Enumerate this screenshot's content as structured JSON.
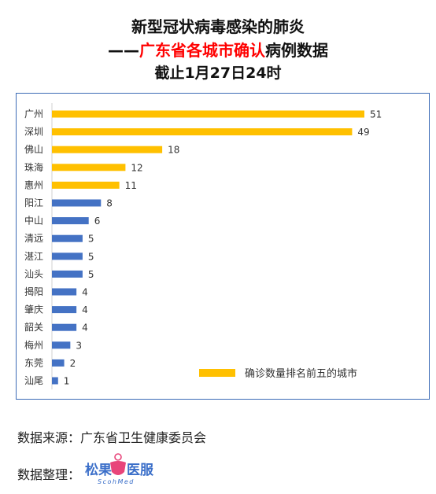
{
  "title": {
    "line1": "新型冠状病毒感染的肺炎",
    "line2_prefix": "——",
    "line2_highlight": "广东省各城市确认",
    "line2_suffix": "病例数据",
    "line3": "截止1月27日24时"
  },
  "colors": {
    "highlight_bar": "#ffc000",
    "normal_bar": "#4472c4",
    "title_red": "#ff0000",
    "frame": "#3c6bb6",
    "logo_pink": "#e8457a",
    "logo_blue": "#3b6fc9"
  },
  "chart_data": {
    "type": "bar",
    "orientation": "horizontal",
    "categories": [
      "广州",
      "深圳",
      "佛山",
      "珠海",
      "惠州",
      "阳江",
      "中山",
      "清远",
      "湛江",
      "汕头",
      "揭阳",
      "肇庆",
      "韶关",
      "梅州",
      "东莞",
      "汕尾"
    ],
    "values": [
      51,
      49,
      18,
      12,
      11,
      8,
      6,
      5,
      5,
      5,
      4,
      4,
      4,
      3,
      2,
      1
    ],
    "highlighted_top": 5,
    "legend": {
      "label": "确诊数量排名前五的城市",
      "placement": "bottom-right"
    },
    "xlim": [
      0,
      51
    ],
    "grid": false,
    "data_labels": true
  },
  "footer": {
    "source_label": "数据来源：",
    "source_value": "广东省卫生健康委员会",
    "organizer_label": "数据整理：",
    "logo_text_left": "松果",
    "logo_text_right": "医服",
    "logo_subtext": "ScohMed"
  }
}
